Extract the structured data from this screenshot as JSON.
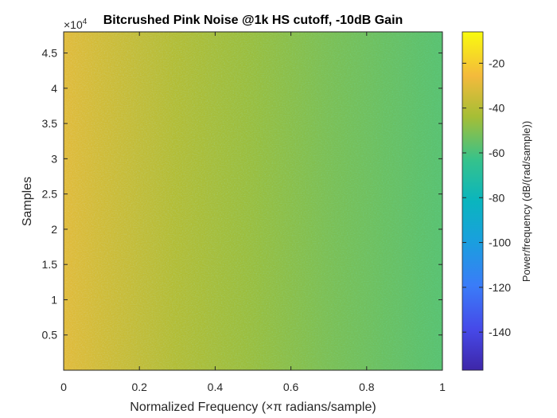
{
  "chart_data": {
    "type": "heatmap",
    "title": "Bitcrushed Pink Noise @1k HS cutoff, -10dB Gain",
    "xlabel": "Normalized Frequency (×π radians/sample)",
    "ylabel": "Samples",
    "y_exponent_label": "×10",
    "y_exponent_superscript": "4",
    "xlim": [
      0,
      1
    ],
    "ylim": [
      0,
      4.8
    ],
    "x_ticks": [
      0,
      0.2,
      0.4,
      0.6,
      0.8,
      1
    ],
    "x_tick_labels": [
      "0",
      "0.2",
      "0.4",
      "0.6",
      "0.8",
      "1"
    ],
    "y_ticks": [
      0.5,
      1,
      1.5,
      2,
      2.5,
      3,
      3.5,
      4,
      4.5
    ],
    "y_tick_labels": [
      "0.5",
      "1",
      "1.5",
      "2",
      "2.5",
      "3",
      "3.5",
      "4",
      "4.5"
    ],
    "power_profile_db": [
      {
        "freq": 0.0,
        "db": -30
      },
      {
        "freq": 0.1,
        "db": -34
      },
      {
        "freq": 0.3,
        "db": -41
      },
      {
        "freq": 0.5,
        "db": -46
      },
      {
        "freq": 0.7,
        "db": -51
      },
      {
        "freq": 0.9,
        "db": -55
      },
      {
        "freq": 1.0,
        "db": -57
      }
    ],
    "colorbar": {
      "label": "Power/frequency (dB/(rad/sample))",
      "range": [
        -157,
        -6
      ],
      "ticks": [
        -20,
        -40,
        -60,
        -80,
        -100,
        -120,
        -140
      ],
      "tick_labels": [
        "-20",
        "-40",
        "-60",
        "-80",
        "-100",
        "-120",
        "-140"
      ],
      "colormap": "parula"
    }
  }
}
